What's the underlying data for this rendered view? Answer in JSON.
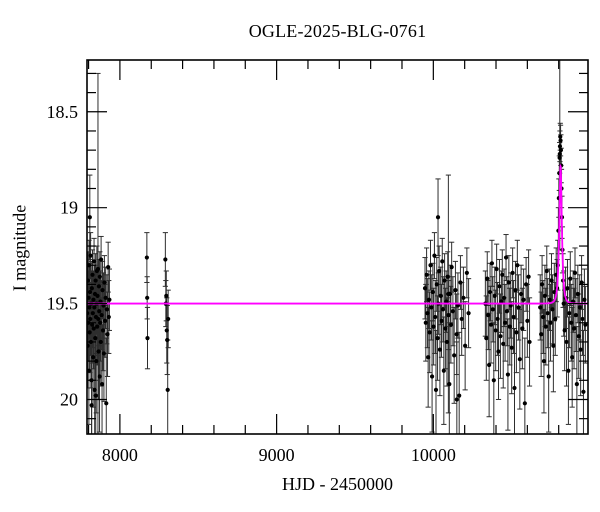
{
  "title": "OGLE-2025-BLG-0761",
  "x_axis_label": "HJD - 2450000",
  "y_axis_label": "I magnitude",
  "colors": {
    "background": "#ffffff",
    "frame": "#000000",
    "points": "#000000",
    "error_bars": "#2e2e2e",
    "model": "#ff00ff",
    "text": "#000000"
  },
  "chart_data": {
    "type": "scatter",
    "title": "OGLE-2025-BLG-0761",
    "xlabel": "HJD - 2450000",
    "ylabel": "I magnitude",
    "xlim": [
      7790,
      10987
    ],
    "ylim_mag_top_to_bottom": [
      18.23,
      20.18
    ],
    "x_ticks_major": [
      8000,
      9000,
      10000
    ],
    "x_minor_step": 200,
    "y_ticks_major": [
      18.5,
      19,
      19.5,
      20
    ],
    "y_minor_step": 0.1,
    "grid": false,
    "legend": "none",
    "model": {
      "kind": "paczynski",
      "baseline_mag": 19.5,
      "t0": 10812,
      "tE": 13,
      "u0": 0.58,
      "peak_mag": 18.78
    },
    "points": [
      [
        7791,
        19.55,
        0.18
      ],
      [
        7794,
        19.72,
        0.22
      ],
      [
        7796,
        19.38,
        0.15
      ],
      [
        7798,
        19.6,
        0.2
      ],
      [
        7800,
        19.47,
        0.14
      ],
      [
        7802,
        19.85,
        0.28
      ],
      [
        7803,
        19.3,
        0.13
      ],
      [
        7805,
        19.52,
        0.16
      ],
      [
        7807,
        19.65,
        0.21
      ],
      [
        7808,
        19.05,
        0.22
      ],
      [
        7809,
        19.44,
        0.15
      ],
      [
        7811,
        19.58,
        0.19
      ],
      [
        7813,
        19.25,
        0.12
      ],
      [
        7815,
        19.7,
        0.24
      ],
      [
        7817,
        19.5,
        0.17
      ],
      [
        7819,
        19.9,
        0.3
      ],
      [
        7820,
        20.03,
        0.33
      ],
      [
        7821,
        19.42,
        0.14
      ],
      [
        7823,
        19.61,
        0.2
      ],
      [
        7825,
        19.35,
        0.13
      ],
      [
        7827,
        19.55,
        0.18
      ],
      [
        7829,
        19.78,
        0.26
      ],
      [
        7831,
        19.48,
        0.15
      ],
      [
        7833,
        19.63,
        0.21
      ],
      [
        7835,
        19.28,
        0.12
      ],
      [
        7837,
        19.52,
        0.17
      ],
      [
        7839,
        19.95,
        0.32
      ],
      [
        7841,
        19.45,
        0.15
      ],
      [
        7843,
        19.68,
        0.22
      ],
      [
        7845,
        19.38,
        0.14
      ],
      [
        7846,
        19.98,
        0.3
      ],
      [
        7847,
        19.57,
        0.19
      ],
      [
        7849,
        19.8,
        0.27
      ],
      [
        7851,
        19.5,
        0.16
      ],
      [
        7853,
        19.33,
        0.13
      ],
      [
        7855,
        19.62,
        0.2
      ],
      [
        7857,
        19.46,
        0.15
      ],
      [
        7860,
        19.32,
        1.02
      ],
      [
        7862,
        19.58,
        0.19
      ],
      [
        7864,
        19.75,
        0.25
      ],
      [
        7866,
        19.41,
        0.14
      ],
      [
        7868,
        19.54,
        0.18
      ],
      [
        7870,
        19.88,
        0.29
      ],
      [
        7872,
        19.36,
        0.13
      ],
      [
        7874,
        19.6,
        0.2
      ],
      [
        7876,
        19.49,
        0.16
      ],
      [
        7878,
        19.7,
        0.23
      ],
      [
        7880,
        19.27,
        0.12
      ],
      [
        7883,
        19.56,
        0.18
      ],
      [
        7886,
        19.92,
        0.31
      ],
      [
        7889,
        19.43,
        0.15
      ],
      [
        7892,
        19.64,
        0.21
      ],
      [
        7895,
        19.51,
        0.17
      ],
      [
        7898,
        19.76,
        0.25
      ],
      [
        7901,
        19.39,
        0.14
      ],
      [
        7905,
        19.59,
        0.19
      ],
      [
        7909,
        19.47,
        0.16
      ],
      [
        7913,
        20.02,
        0.34
      ],
      [
        7917,
        19.53,
        0.18
      ],
      [
        7921,
        19.66,
        0.22
      ],
      [
        7925,
        19.31,
        0.13
      ],
      [
        7929,
        19.57,
        0.19
      ],
      [
        7933,
        19.48,
        0.16
      ],
      [
        8172,
        19.26,
        0.13
      ],
      [
        8174,
        19.47,
        0.11
      ],
      [
        8176,
        19.68,
        0.16
      ],
      [
        8290,
        19.27,
        0.14
      ],
      [
        8293,
        19.5,
        0.12
      ],
      [
        8296,
        19.46,
        0.13
      ],
      [
        8299,
        19.64,
        0.17
      ],
      [
        8302,
        19.69,
        0.18
      ],
      [
        8305,
        19.95,
        0.26
      ],
      [
        8308,
        19.58,
        0.15
      ],
      [
        9947,
        19.42,
        0.16
      ],
      [
        9952,
        19.6,
        0.2
      ],
      [
        9957,
        19.35,
        0.14
      ],
      [
        9962,
        19.55,
        0.18
      ],
      [
        9967,
        19.78,
        0.26
      ],
      [
        9972,
        19.48,
        0.15
      ],
      [
        9977,
        19.65,
        0.21
      ],
      [
        9982,
        19.3,
        0.13
      ],
      [
        9987,
        19.52,
        0.17
      ],
      [
        9992,
        19.88,
        0.29
      ],
      [
        9997,
        19.44,
        0.15
      ],
      [
        10002,
        19.62,
        0.2
      ],
      [
        10007,
        19.25,
        0.12
      ],
      [
        10012,
        19.57,
        0.19
      ],
      [
        10017,
        19.95,
        0.31
      ],
      [
        10022,
        19.4,
        0.14
      ],
      [
        10027,
        19.68,
        0.22
      ],
      [
        10030,
        19.05,
        0.2
      ],
      [
        10032,
        19.5,
        0.16
      ],
      [
        10037,
        19.33,
        0.13
      ],
      [
        10042,
        19.74,
        0.24
      ],
      [
        10047,
        19.46,
        0.15
      ],
      [
        10052,
        19.59,
        0.19
      ],
      [
        10057,
        19.28,
        0.12
      ],
      [
        10062,
        19.53,
        0.17
      ],
      [
        10067,
        19.85,
        0.28
      ],
      [
        10072,
        19.38,
        0.14
      ],
      [
        10077,
        19.63,
        0.21
      ],
      [
        10082,
        19.49,
        0.16
      ],
      [
        10087,
        19.7,
        0.23
      ],
      [
        10092,
        19.36,
        0.13
      ],
      [
        10096,
        19.45,
        0.62
      ],
      [
        10097,
        19.56,
        0.18
      ],
      [
        10102,
        19.92,
        0.3
      ],
      [
        10107,
        19.45,
        0.15
      ],
      [
        10112,
        19.61,
        0.2
      ],
      [
        10117,
        19.31,
        0.13
      ],
      [
        10125,
        19.54,
        0.18
      ],
      [
        10133,
        19.77,
        0.25
      ],
      [
        10141,
        19.43,
        0.15
      ],
      [
        10149,
        19.66,
        0.21
      ],
      [
        10150,
        20.0,
        0.3
      ],
      [
        10157,
        19.51,
        0.17
      ],
      [
        10165,
        19.98,
        0.33
      ],
      [
        10173,
        19.39,
        0.14
      ],
      [
        10181,
        19.58,
        0.19
      ],
      [
        10192,
        19.47,
        0.16
      ],
      [
        10203,
        19.72,
        0.23
      ],
      [
        10214,
        19.34,
        0.13
      ],
      [
        10225,
        19.55,
        0.18
      ],
      [
        10332,
        19.5,
        0.17
      ],
      [
        10338,
        19.68,
        0.22
      ],
      [
        10344,
        19.37,
        0.14
      ],
      [
        10350,
        19.56,
        0.18
      ],
      [
        10356,
        19.82,
        0.27
      ],
      [
        10362,
        19.44,
        0.15
      ],
      [
        10368,
        19.61,
        0.2
      ],
      [
        10374,
        19.29,
        0.12
      ],
      [
        10380,
        19.53,
        0.17
      ],
      [
        10386,
        19.9,
        0.3
      ],
      [
        10392,
        19.46,
        0.15
      ],
      [
        10398,
        19.64,
        0.21
      ],
      [
        10404,
        19.32,
        0.13
      ],
      [
        10410,
        19.58,
        0.19
      ],
      [
        10416,
        19.75,
        0.25
      ],
      [
        10422,
        19.41,
        0.14
      ],
      [
        10428,
        19.67,
        0.22
      ],
      [
        10434,
        19.49,
        0.16
      ],
      [
        10440,
        19.35,
        0.13
      ],
      [
        10446,
        19.71,
        0.23
      ],
      [
        10452,
        19.47,
        0.15
      ],
      [
        10458,
        19.6,
        0.2
      ],
      [
        10464,
        19.26,
        0.12
      ],
      [
        10470,
        19.54,
        0.18
      ],
      [
        10476,
        19.87,
        0.29
      ],
      [
        10482,
        19.39,
        0.14
      ],
      [
        10488,
        19.62,
        0.2
      ],
      [
        10494,
        19.51,
        0.17
      ],
      [
        10500,
        19.73,
        0.24
      ],
      [
        10506,
        19.34,
        0.13
      ],
      [
        10512,
        19.57,
        0.19
      ],
      [
        10518,
        19.94,
        0.31
      ],
      [
        10524,
        19.43,
        0.15
      ],
      [
        10530,
        19.65,
        0.21
      ],
      [
        10536,
        19.3,
        0.13
      ],
      [
        10544,
        19.52,
        0.17
      ],
      [
        10552,
        19.79,
        0.26
      ],
      [
        10560,
        19.45,
        0.15
      ],
      [
        10568,
        19.63,
        0.21
      ],
      [
        10576,
        19.48,
        0.16
      ],
      [
        10584,
        20.02,
        0.34
      ],
      [
        10592,
        19.4,
        0.14
      ],
      [
        10600,
        19.59,
        0.19
      ],
      [
        10608,
        19.36,
        0.14
      ],
      [
        10614,
        19.7,
        0.23
      ],
      [
        10682,
        19.52,
        0.17
      ],
      [
        10688,
        19.66,
        0.22
      ],
      [
        10694,
        19.4,
        0.15
      ],
      [
        10700,
        19.57,
        0.19
      ],
      [
        10706,
        19.8,
        0.27
      ],
      [
        10712,
        19.46,
        0.16
      ],
      [
        10718,
        19.62,
        0.2
      ],
      [
        10724,
        19.33,
        0.13
      ],
      [
        10730,
        19.55,
        0.18
      ],
      [
        10736,
        19.88,
        0.29
      ],
      [
        10742,
        19.48,
        0.16
      ],
      [
        10748,
        19.6,
        0.2
      ],
      [
        10754,
        19.38,
        0.14
      ],
      [
        10760,
        19.53,
        0.18
      ],
      [
        10766,
        19.72,
        0.24
      ],
      [
        10772,
        19.44,
        0.15
      ],
      [
        10778,
        19.58,
        0.19
      ],
      [
        10784,
        19.35,
        0.14
      ],
      [
        10790,
        19.42,
        0.15
      ],
      [
        10794,
        19.3,
        0.13
      ],
      [
        10798,
        19.12,
        0.12
      ],
      [
        10801,
        18.95,
        0.1
      ],
      [
        10804,
        18.82,
        0.09
      ],
      [
        10806,
        18.74,
        0.08
      ],
      [
        10807,
        18.72,
        0.5
      ],
      [
        10808,
        18.68,
        0.08
      ],
      [
        10810,
        18.63,
        0.07
      ],
      [
        10812,
        18.65,
        0.08
      ],
      [
        10814,
        18.7,
        0.08
      ],
      [
        10816,
        18.78,
        0.09
      ],
      [
        10818,
        18.9,
        0.1
      ],
      [
        10821,
        19.05,
        0.11
      ],
      [
        10824,
        19.22,
        0.12
      ],
      [
        10828,
        19.38,
        0.14
      ],
      [
        10832,
        19.5,
        0.17
      ],
      [
        10838,
        19.64,
        0.21
      ],
      [
        10844,
        19.47,
        0.16
      ],
      [
        10850,
        19.7,
        0.23
      ],
      [
        10856,
        19.42,
        0.15
      ],
      [
        10862,
        19.85,
        0.28
      ],
      [
        10868,
        19.55,
        0.18
      ],
      [
        10874,
        19.37,
        0.14
      ],
      [
        10880,
        19.6,
        0.2
      ],
      [
        10886,
        19.78,
        0.26
      ],
      [
        10892,
        19.49,
        0.16
      ],
      [
        10898,
        19.63,
        0.21
      ],
      [
        10904,
        19.34,
        0.13
      ],
      [
        10910,
        19.56,
        0.19
      ],
      [
        10916,
        19.92,
        0.3
      ],
      [
        10922,
        19.45,
        0.15
      ],
      [
        10928,
        19.67,
        0.22
      ],
      [
        10934,
        19.52,
        0.17
      ],
      [
        10940,
        19.74,
        0.24
      ],
      [
        10946,
        19.39,
        0.14
      ],
      [
        10952,
        19.58,
        0.19
      ],
      [
        10958,
        19.96,
        0.32
      ],
      [
        10964,
        19.48,
        0.16
      ],
      [
        10970,
        19.61,
        0.2
      ]
    ]
  }
}
